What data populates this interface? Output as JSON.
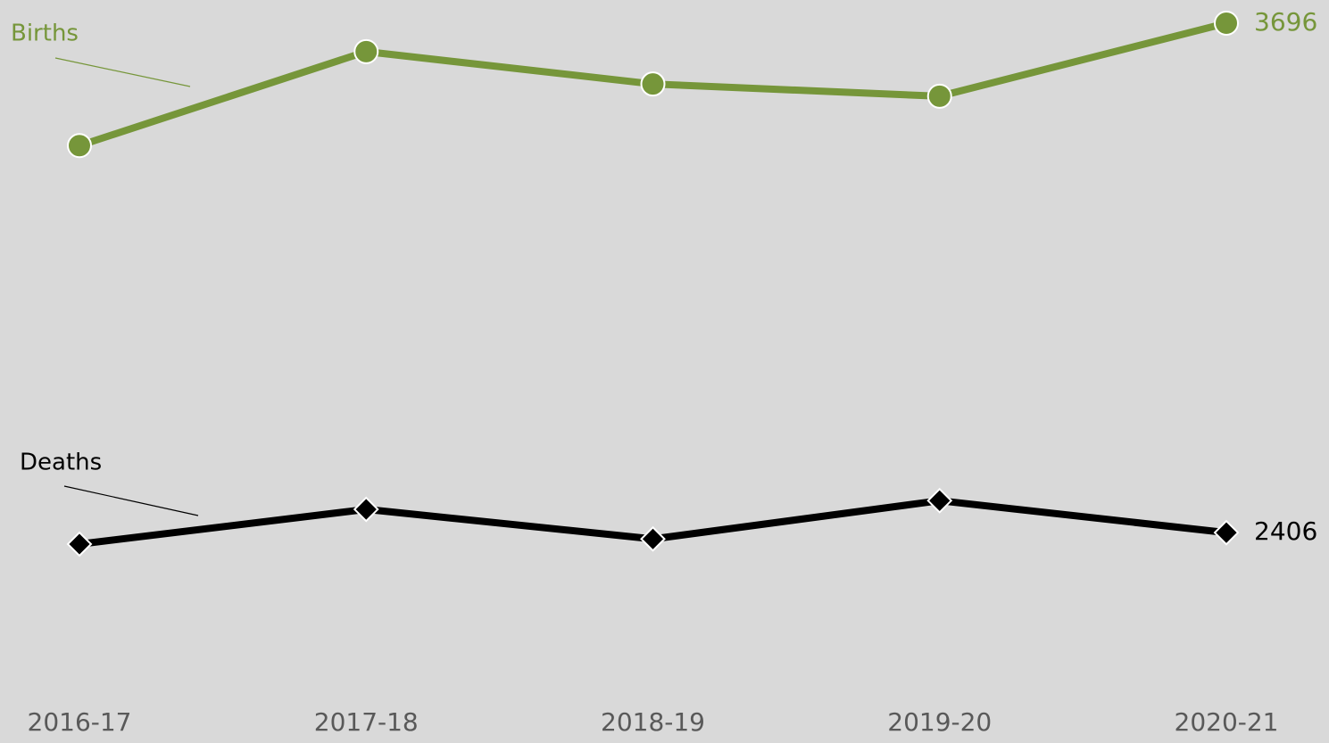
{
  "chart_data": {
    "type": "line",
    "categories": [
      "2016-17",
      "2017-18",
      "2018-19",
      "2019-20",
      "2020-21"
    ],
    "series": [
      {
        "name": "Births",
        "color": "#76963a",
        "marker": "circle",
        "values": [
          3386,
          3624,
          3542,
          3511,
          3696
        ]
      },
      {
        "name": "Deaths",
        "color": "#000000",
        "marker": "diamond",
        "values": [
          2377,
          2465,
          2390,
          2487,
          2406
        ]
      }
    ]
  }
}
